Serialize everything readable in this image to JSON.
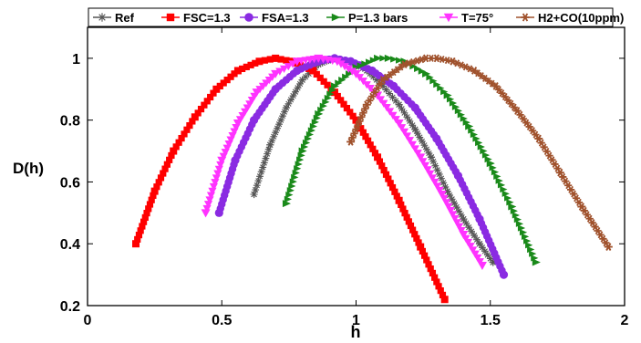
{
  "chart_data": {
    "type": "scatter",
    "xlabel": "h",
    "ylabel": "D(h)",
    "xlim": [
      0,
      2
    ],
    "ylim": [
      0.2,
      1.1
    ],
    "xticks": [
      0,
      0.5,
      1,
      1.5,
      2
    ],
    "xtick_labels": [
      "0",
      "0.5",
      "1",
      "1.5",
      "2"
    ],
    "yticks": [
      0.2,
      0.4,
      0.6,
      0.8,
      1
    ],
    "ytick_labels": [
      "0.2",
      "0.4",
      "0.6",
      "0.8",
      "1"
    ],
    "grid": false,
    "legend_position": "top",
    "series": [
      {
        "name": "Ref",
        "color": "#555555",
        "marker": "asterisk",
        "x": [
          0.62,
          0.68,
          0.74,
          0.8,
          0.86,
          0.92,
          0.98,
          1.04,
          1.1,
          1.16,
          1.22,
          1.28,
          1.34,
          1.4,
          1.46,
          1.51
        ],
        "y": [
          0.56,
          0.72,
          0.84,
          0.93,
          0.98,
          1.0,
          0.99,
          0.96,
          0.91,
          0.85,
          0.77,
          0.68,
          0.57,
          0.48,
          0.4,
          0.34
        ]
      },
      {
        "name": "FSC=1.3",
        "color": "#ff0000",
        "marker": "square",
        "x": [
          0.18,
          0.25,
          0.32,
          0.4,
          0.48,
          0.56,
          0.64,
          0.7,
          0.76,
          0.84,
          0.92,
          1.0,
          1.08,
          1.16,
          1.24,
          1.33
        ],
        "y": [
          0.4,
          0.57,
          0.7,
          0.81,
          0.9,
          0.96,
          0.99,
          1.0,
          0.99,
          0.96,
          0.89,
          0.8,
          0.68,
          0.54,
          0.39,
          0.22
        ]
      },
      {
        "name": "FSA=1.3",
        "color": "#8a2be2",
        "marker": "circle",
        "x": [
          0.49,
          0.55,
          0.62,
          0.7,
          0.78,
          0.86,
          0.92,
          0.98,
          1.06,
          1.14,
          1.22,
          1.3,
          1.38,
          1.46,
          1.55
        ],
        "y": [
          0.5,
          0.67,
          0.8,
          0.9,
          0.96,
          0.99,
          1.0,
          0.99,
          0.96,
          0.91,
          0.84,
          0.74,
          0.62,
          0.48,
          0.3
        ]
      },
      {
        "name": "P=1.3 bars",
        "color": "#1a8a1a",
        "marker": "triangle-right",
        "x": [
          0.74,
          0.8,
          0.86,
          0.92,
          1.0,
          1.08,
          1.12,
          1.18,
          1.26,
          1.34,
          1.42,
          1.5,
          1.58,
          1.67
        ],
        "y": [
          0.53,
          0.7,
          0.82,
          0.91,
          0.97,
          1.0,
          1.0,
          0.99,
          0.95,
          0.88,
          0.78,
          0.66,
          0.52,
          0.34
        ]
      },
      {
        "name": "T=75°",
        "color": "#ff33ff",
        "marker": "triangle-down",
        "x": [
          0.44,
          0.5,
          0.56,
          0.63,
          0.7,
          0.78,
          0.86,
          0.93,
          1.0,
          1.08,
          1.16,
          1.24,
          1.32,
          1.4,
          1.47
        ],
        "y": [
          0.5,
          0.67,
          0.79,
          0.89,
          0.95,
          0.99,
          1.0,
          0.99,
          0.95,
          0.88,
          0.79,
          0.68,
          0.56,
          0.43,
          0.33
        ]
      },
      {
        "name": "H2+CO(10ppm)",
        "color": "#a0522d",
        "marker": "hexagram",
        "x": [
          0.98,
          1.04,
          1.1,
          1.18,
          1.26,
          1.3,
          1.36,
          1.44,
          1.52,
          1.6,
          1.68,
          1.76,
          1.84,
          1.94
        ],
        "y": [
          0.73,
          0.85,
          0.93,
          0.98,
          1.0,
          1.0,
          0.99,
          0.96,
          0.91,
          0.83,
          0.74,
          0.63,
          0.52,
          0.39
        ]
      }
    ]
  }
}
